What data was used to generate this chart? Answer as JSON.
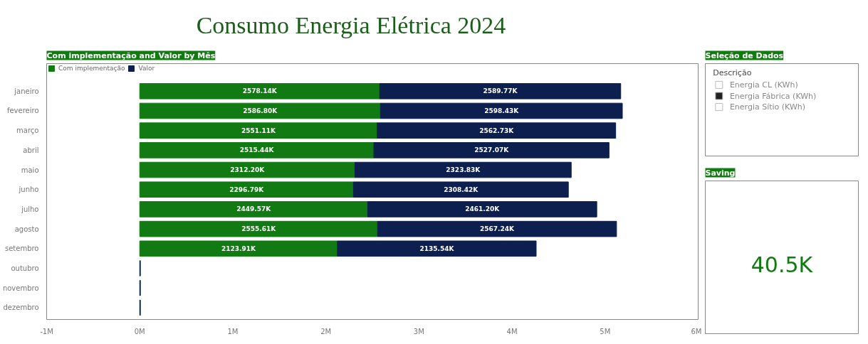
{
  "chart_data": [
    {
      "type": "bar",
      "orientation": "horizontal",
      "stacked": true,
      "title": "Consumo Energia Elétrica 2024",
      "subtitle": "Com implementação and Valor by Mês",
      "categories": [
        "janeiro",
        "fevereiro",
        "março",
        "abril",
        "maio",
        "junho",
        "julho",
        "agosto",
        "setembro",
        "outubro",
        "novembro",
        "dezembro"
      ],
      "series": [
        {
          "name": "Com implementação",
          "color": "#127a12",
          "values": [
            2578140,
            2586800,
            2551110,
            2515440,
            2312200,
            2296790,
            2449570,
            2555610,
            2123910,
            5000,
            5000,
            5000
          ],
          "value_labels": [
            "2578.14K",
            "2586.80K",
            "2551.11K",
            "2515.44K",
            "2312.20K",
            "2296.79K",
            "2449.57K",
            "2555.61K",
            "2123.91K",
            null,
            null,
            null
          ]
        },
        {
          "name": "Valor",
          "color": "#0c1f4f",
          "values": [
            2589770,
            2598430,
            2562730,
            2527070,
            2323830,
            2308420,
            2461200,
            2567240,
            2135540,
            0,
            0,
            0
          ],
          "value_labels": [
            "2589.77K",
            "2598.43K",
            "2562.73K",
            "2527.07K",
            "2323.83K",
            "2308.42K",
            "2461.20K",
            "2567.24K",
            "2135.54K",
            null,
            null,
            null
          ]
        }
      ],
      "xlim": [
        -1000000,
        6000000
      ],
      "xticks": [
        {
          "value": -1000000,
          "label": "-1M"
        },
        {
          "value": 0,
          "label": "0M"
        },
        {
          "value": 1000000,
          "label": "1M"
        },
        {
          "value": 2000000,
          "label": "2M"
        },
        {
          "value": 3000000,
          "label": "3M"
        },
        {
          "value": 4000000,
          "label": "4M"
        },
        {
          "value": 5000000,
          "label": "5M"
        },
        {
          "value": 6000000,
          "label": "6M"
        }
      ],
      "grid": false,
      "legend": "top left"
    },
    {
      "type": "other",
      "title": "Seleção de Dados",
      "subtitle": "Descrição",
      "categories": [
        "Energia CL (KWh)",
        "Energia Fábrica (KWh)",
        "Energia Sítio (KWh)"
      ],
      "colors": [
        "#ffffff",
        "#222222",
        "#ffffff"
      ]
    },
    {
      "type": "other",
      "title": "Saving",
      "annotations": [
        "40.5K"
      ]
    }
  ]
}
